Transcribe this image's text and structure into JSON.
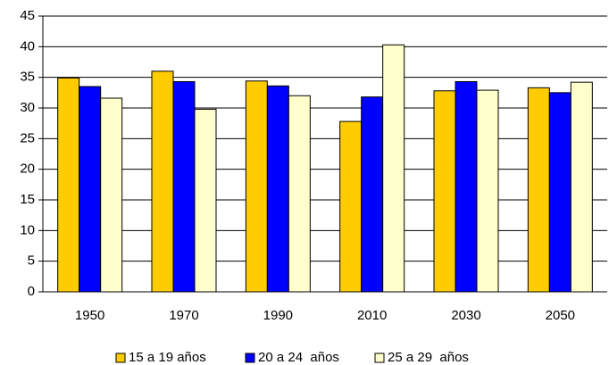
{
  "chart_data": {
    "type": "bar",
    "categories": [
      "1950",
      "1970",
      "1990",
      "2010",
      "2030",
      "2050"
    ],
    "series": [
      {
        "name": "15 a 19 años",
        "color": "#ffcc00",
        "values": [
          34.9,
          36.0,
          34.4,
          27.8,
          32.8,
          33.3
        ]
      },
      {
        "name": "20 a 24  años",
        "color": "#0000ff",
        "values": [
          33.5,
          34.3,
          33.6,
          31.8,
          34.3,
          32.5
        ]
      },
      {
        "name": "25 a 29  años",
        "color": "#ffffcc",
        "values": [
          31.6,
          29.8,
          32.0,
          40.3,
          32.9,
          34.2
        ]
      }
    ],
    "ylim": [
      0,
      45
    ],
    "yticks": [
      0,
      5,
      10,
      15,
      20,
      25,
      30,
      35,
      40,
      45
    ],
    "grid": true,
    "legend": "bottom"
  }
}
